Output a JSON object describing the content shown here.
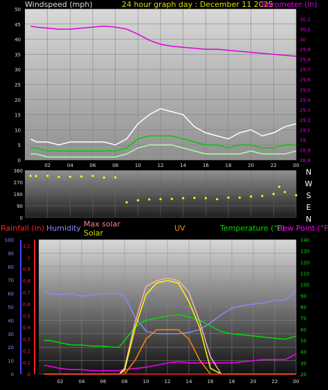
{
  "chart_data": [
    {
      "type": "line",
      "title": "24 hour graph day : December 11 2025",
      "ylabel_left": "Windspeed (mph)",
      "ylabel_right": "Barometer (in)",
      "xlabels": [
        "02",
        "04",
        "06",
        "08",
        "10",
        "12",
        "14",
        "16",
        "18",
        "20",
        "22",
        "00"
      ],
      "ylim_left": [
        0,
        50
      ],
      "yticks_left": [
        "0",
        "5",
        "10",
        "15",
        "20",
        "25",
        "30",
        "35",
        "40",
        "45",
        "50"
      ],
      "ylim_right": [
        28.8,
        30.3
      ],
      "yticks_right": [
        "28.8",
        "28.9",
        "29",
        "29.1",
        "29.2",
        "29.3",
        "29.4",
        "29.5",
        "29.6",
        "29.7",
        "29.8",
        "29.9",
        "30",
        "30.1",
        "30.2"
      ],
      "x": [
        0.5,
        1,
        2,
        3,
        4,
        5,
        6,
        7,
        8,
        9,
        10,
        11,
        12,
        13,
        14,
        15,
        16,
        17,
        18,
        19,
        20,
        21,
        22,
        23,
        24
      ],
      "series": [
        {
          "axis": "left",
          "color": "#ffffff",
          "values": [
            7,
            6,
            6,
            5,
            6,
            6,
            6,
            6,
            5,
            7,
            12,
            15,
            17,
            16,
            15,
            11,
            9,
            8,
            7,
            9,
            10,
            8,
            9,
            11,
            12
          ]
        },
        {
          "axis": "left",
          "color": "#00cc00",
          "values": [
            4,
            4,
            3,
            3,
            3,
            3,
            3,
            3,
            3,
            4,
            7,
            8,
            8,
            8,
            7,
            6,
            5,
            5,
            4,
            5,
            5,
            4,
            4,
            5,
            5
          ]
        },
        {
          "axis": "left",
          "color": "#aaffaa",
          "values": [
            2,
            2,
            1,
            1,
            1,
            1,
            1,
            1,
            1,
            2,
            4,
            5,
            5,
            5,
            4,
            3,
            2,
            2,
            2,
            2,
            3,
            2,
            2,
            2,
            3
          ]
        },
        {
          "axis": "right",
          "color": "#dd00dd",
          "values": [
            30.13,
            30.12,
            30.11,
            30.1,
            30.1,
            30.11,
            30.12,
            30.13,
            30.12,
            30.1,
            30.05,
            29.99,
            29.95,
            29.93,
            29.92,
            29.91,
            29.9,
            29.9,
            29.89,
            29.88,
            29.87,
            29.86,
            29.85,
            29.84,
            29.83
          ]
        }
      ]
    },
    {
      "type": "scatter",
      "yticks_left": [
        "0",
        "90",
        "180",
        "270",
        "360"
      ],
      "ylim": [
        0,
        360
      ],
      "compass_labels": [
        "N",
        "W",
        "S",
        "E",
        "N"
      ],
      "xlabels": [
        "02",
        "04",
        "06",
        "08",
        "10",
        "12",
        "14",
        "16",
        "18",
        "20",
        "22",
        "00"
      ],
      "series": [
        {
          "name": "",
          "color": "#ffff00",
          "x": [
            0.5,
            1,
            2,
            3,
            4,
            5,
            6,
            7,
            8,
            9,
            10,
            11,
            12,
            13,
            14,
            15,
            16,
            17,
            18,
            19,
            20,
            21,
            22,
            22.5,
            23,
            24
          ],
          "values": [
            318,
            317,
            318,
            310,
            312,
            314,
            318,
            305,
            306,
            116,
            132,
            138,
            140,
            142,
            148,
            150,
            148,
            140,
            152,
            152,
            160,
            165,
            180,
            235,
            195,
            170
          ]
        }
      ]
    },
    {
      "type": "line",
      "labels_top": [
        "Rainfall (in)",
        "Humidity",
        "Max solar",
        "Solar",
        "UV",
        "Temperature (°F)",
        "Dew Point (°F)"
      ],
      "yticks_rain": [
        "0",
        "0.1",
        "0.2",
        "0.3",
        "0.4",
        "0.5",
        "0.6",
        "0.7",
        "0.8",
        "0.9",
        "1",
        "1.1"
      ],
      "yticks_humidity": [
        "0",
        "10",
        "20",
        "30",
        "40",
        "50",
        "60",
        "70",
        "80",
        "90",
        "100"
      ],
      "yticks_temp": [
        "20",
        "30",
        "40",
        "50",
        "60",
        "70",
        "80",
        "90",
        "100",
        "110",
        "120",
        "130",
        "140"
      ],
      "xlabels": [
        "02",
        "04",
        "06",
        "08",
        "10",
        "12",
        "14",
        "16",
        "18",
        "20",
        "22",
        "00"
      ],
      "x": [
        0.5,
        1,
        2,
        3,
        4,
        5,
        6,
        7,
        7.5,
        8,
        9,
        10,
        11,
        12,
        13,
        14,
        15,
        16,
        17,
        18,
        19,
        20,
        21,
        22,
        23,
        24
      ],
      "series": [
        {
          "name": "Humidity",
          "color": "#8888ff",
          "range": [
            0,
            100
          ],
          "values": [
            62,
            60,
            59,
            60,
            58,
            59,
            60,
            60,
            60,
            58,
            42,
            32,
            30,
            30,
            30,
            31,
            33,
            38,
            44,
            49,
            51,
            52,
            53,
            55,
            55,
            62
          ]
        },
        {
          "name": "Temperature (°F)",
          "color": "#00dd00",
          "range": [
            20,
            140
          ],
          "values": [
            50,
            50,
            48,
            46,
            46,
            45,
            45,
            44,
            44,
            50,
            62,
            68,
            70,
            72,
            73,
            71,
            68,
            63,
            58,
            56,
            55,
            54,
            53,
            52,
            51,
            54
          ]
        },
        {
          "name": "Dew Point (°F)",
          "color": "#ff00ff",
          "range": [
            20,
            140
          ],
          "values": [
            28,
            27,
            25,
            24,
            24,
            23,
            23,
            23,
            23,
            24,
            25,
            26,
            28,
            30,
            31,
            30,
            30,
            30,
            30,
            30,
            31,
            32,
            33,
            33,
            33,
            38
          ]
        },
        {
          "name": "Max solar",
          "color": "#ffb0b0",
          "range": [
            0,
            1.15
          ],
          "values": [
            0,
            0,
            0,
            0,
            0,
            0,
            0,
            0,
            0,
            0.05,
            0.45,
            0.75,
            0.8,
            0.82,
            0.8,
            0.7,
            0.45,
            0.15,
            0,
            0,
            0,
            0,
            0,
            0,
            0,
            0
          ]
        },
        {
          "name": "Solar",
          "color": "#ffff00",
          "range": [
            0,
            1.15
          ],
          "values": [
            0,
            0,
            0,
            0,
            0,
            0,
            0,
            0,
            0,
            0.03,
            0.4,
            0.68,
            0.78,
            0.8,
            0.78,
            0.62,
            0.4,
            0.05,
            0,
            0,
            0,
            0,
            0,
            0,
            0,
            0
          ]
        },
        {
          "name": "UV",
          "color": "#ff8800",
          "range": [
            0,
            1.15
          ],
          "values": [
            0,
            0,
            0,
            0,
            0,
            0,
            0,
            0,
            0,
            0,
            0.12,
            0.3,
            0.38,
            0.38,
            0.38,
            0.3,
            0.12,
            0,
            0,
            0,
            0,
            0,
            0,
            0,
            0,
            0
          ]
        },
        {
          "name": "Rainfall (in)",
          "color": "#ff2020",
          "range": [
            0,
            1.15
          ],
          "values": [
            0,
            0,
            0,
            0,
            0,
            0,
            0,
            0,
            0,
            0,
            0,
            0,
            0,
            0,
            0,
            0,
            0,
            0,
            0,
            0,
            0,
            0,
            0,
            0,
            0,
            0
          ]
        }
      ]
    }
  ]
}
